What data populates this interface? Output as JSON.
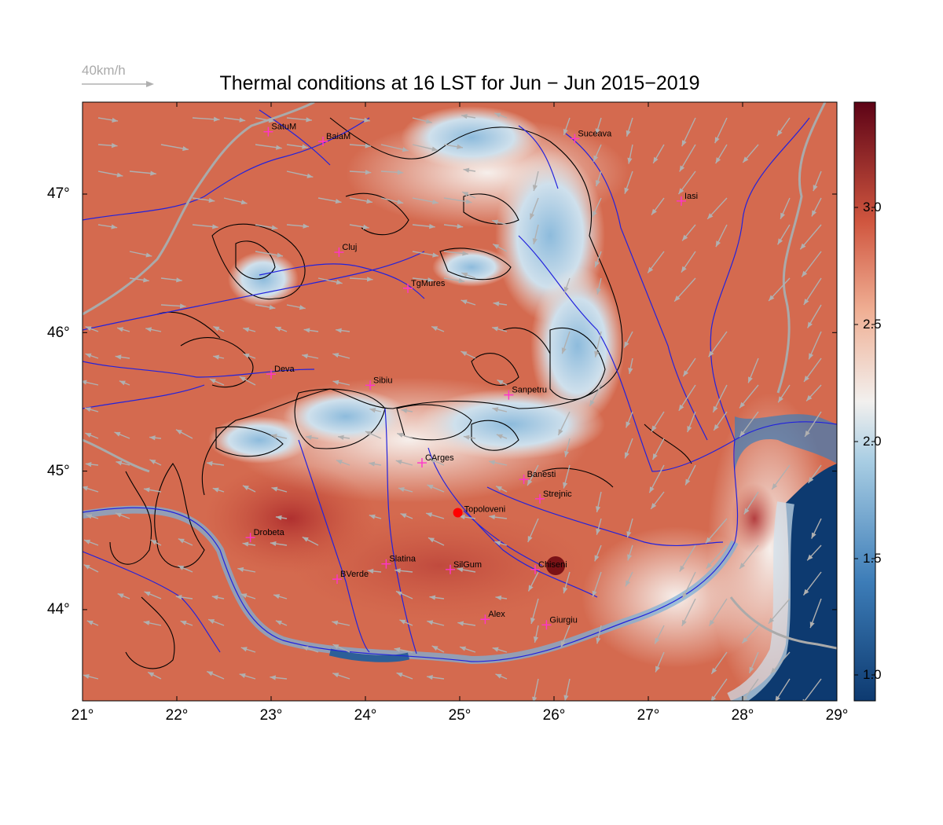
{
  "title": "Thermal conditions at 16 LST for Jun − Jun  2015−2019",
  "wind_scale_label": "40km/h",
  "x_ticks": [
    "21°",
    "22°",
    "23°",
    "24°",
    "25°",
    "26°",
    "27°",
    "28°",
    "29°"
  ],
  "y_ticks": [
    "47°",
    "46°",
    "45°",
    "44°"
  ],
  "colorbar_ticks": [
    "3.0",
    "2.5",
    "2.0",
    "1.5",
    "1.0"
  ],
  "colors": {
    "warm": "#c9503a",
    "hot": "#8e1a1f",
    "neutral": "#f5ede8",
    "cool": "#6da6cf",
    "cold": "#1d4e85",
    "rivers": "#2222dd",
    "arrows": "#b0b0b0",
    "sites": "#ff33cc",
    "highlight": "#ff0000"
  },
  "cities": [
    {
      "name": "SatuM",
      "lon": 22.97,
      "lat": 47.45
    },
    {
      "name": "BaiaM",
      "lon": 23.55,
      "lat": 47.38
    },
    {
      "name": "Suceava",
      "lon": 26.22,
      "lat": 47.4
    },
    {
      "name": "Iasi",
      "lon": 27.35,
      "lat": 46.95
    },
    {
      "name": "Cluj",
      "lon": 23.72,
      "lat": 46.58
    },
    {
      "name": "TgMures",
      "lon": 24.45,
      "lat": 46.32
    },
    {
      "name": "Deva",
      "lon": 23.0,
      "lat": 45.7
    },
    {
      "name": "Sibiu",
      "lon": 24.05,
      "lat": 45.62
    },
    {
      "name": "Sanpetru",
      "lon": 25.52,
      "lat": 45.55
    },
    {
      "name": "CArges",
      "lon": 24.6,
      "lat": 45.06
    },
    {
      "name": "Banesti",
      "lon": 25.68,
      "lat": 44.94
    },
    {
      "name": "Strejnic",
      "lon": 25.85,
      "lat": 44.8
    },
    {
      "name": "Drobeta",
      "lon": 22.78,
      "lat": 44.52
    },
    {
      "name": "Slatina",
      "lon": 24.22,
      "lat": 44.33
    },
    {
      "name": "SilGum",
      "lon": 24.9,
      "lat": 44.29
    },
    {
      "name": "Chiseni",
      "lon": 25.8,
      "lat": 44.29
    },
    {
      "name": "BVerde",
      "lon": 23.7,
      "lat": 44.22
    },
    {
      "name": "Alex",
      "lon": 25.27,
      "lat": 43.93
    },
    {
      "name": "Giurgiu",
      "lon": 25.92,
      "lat": 43.89
    }
  ],
  "highlight_site": {
    "name": "Topoloveni",
    "lon": 24.98,
    "lat": 44.7
  }
}
